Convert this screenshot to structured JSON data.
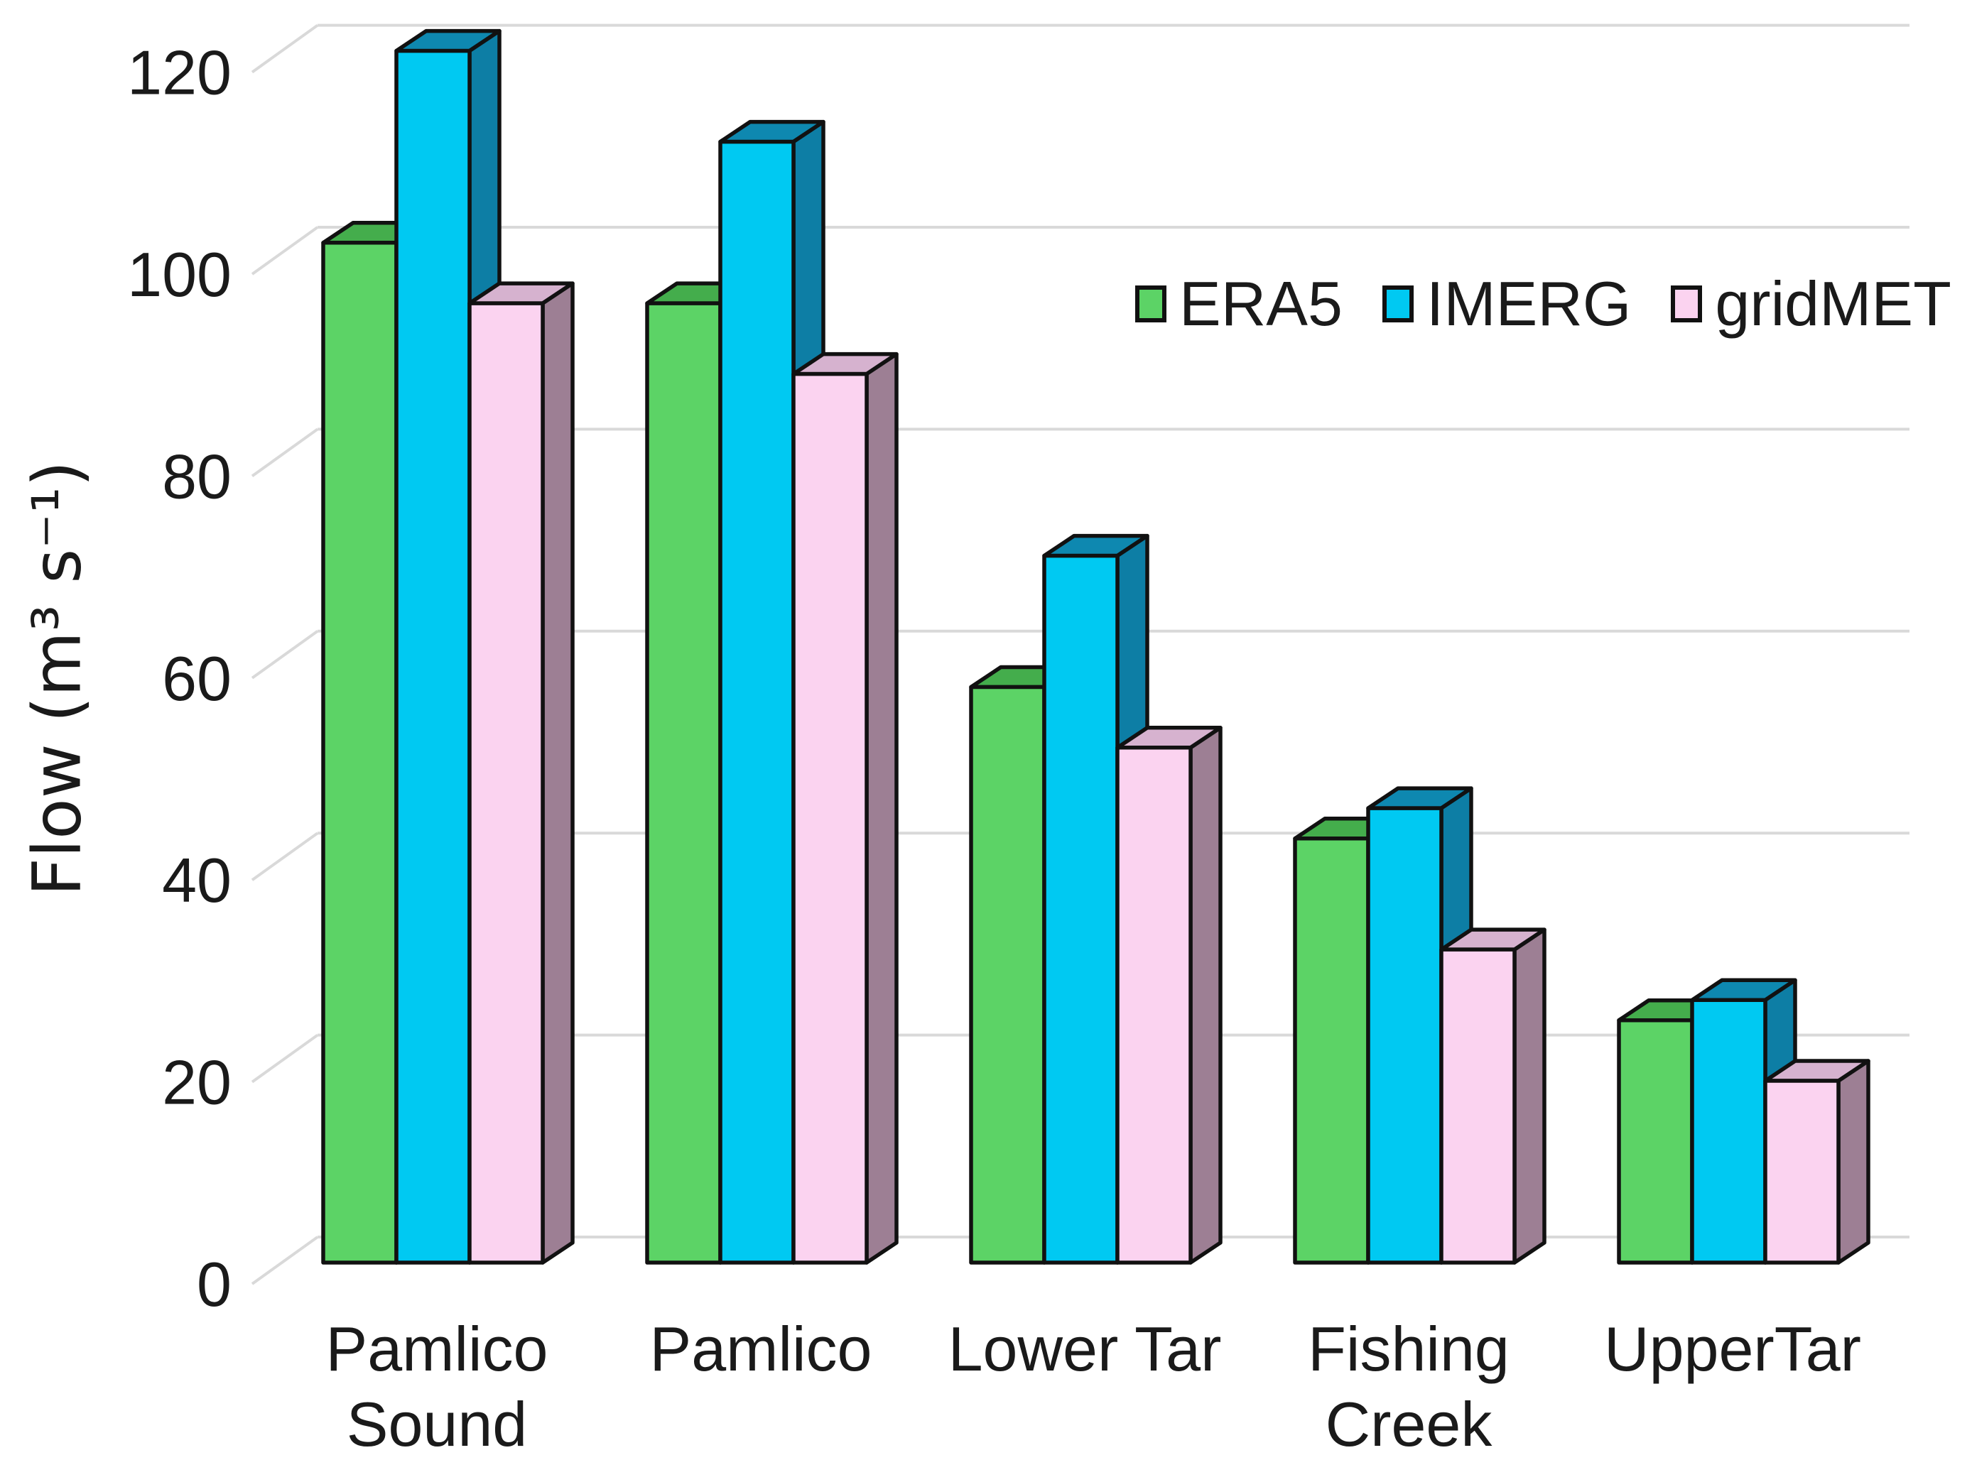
{
  "chart_data": {
    "type": "bar",
    "style_3d": true,
    "title": "",
    "categories": [
      "Pamlico Sound",
      "Pamlico",
      "Lower Tar",
      "Fishing Creek",
      "UpperTar"
    ],
    "category_lines": [
      [
        "Pamlico",
        "Sound"
      ],
      [
        "Pamlico"
      ],
      [
        "Lower Tar"
      ],
      [
        "Fishing",
        "Creek"
      ],
      [
        "UpperTar"
      ]
    ],
    "series": [
      {
        "name": "ERA5",
        "color": "#5CD366",
        "side_color": "#389F42",
        "top_color": "#44AD4C",
        "values": [
          101,
          95,
          57,
          42,
          24
        ]
      },
      {
        "name": "IMERG",
        "color": "#00C9F2",
        "side_color": "#0D7EA5",
        "top_color": "#0E88B0",
        "values": [
          120,
          111,
          70,
          45,
          26
        ]
      },
      {
        "name": "gridMET",
        "color": "#FBD3F0",
        "side_color": "#9D7F94",
        "top_color": "#D6B2CF",
        "values": [
          95,
          88,
          51,
          31,
          18
        ]
      }
    ],
    "xlabel": "",
    "ylabel": "Flow (m³ s⁻¹)",
    "ylim": [
      0,
      120
    ],
    "yticks": [
      0,
      20,
      40,
      60,
      80,
      100,
      120
    ],
    "grid": true,
    "legend_position": "top-right",
    "colors": {
      "gridline": "#D9D9D9",
      "outline": "#111111",
      "text": "#1A1A1A",
      "background": "#FFFFFF"
    }
  }
}
